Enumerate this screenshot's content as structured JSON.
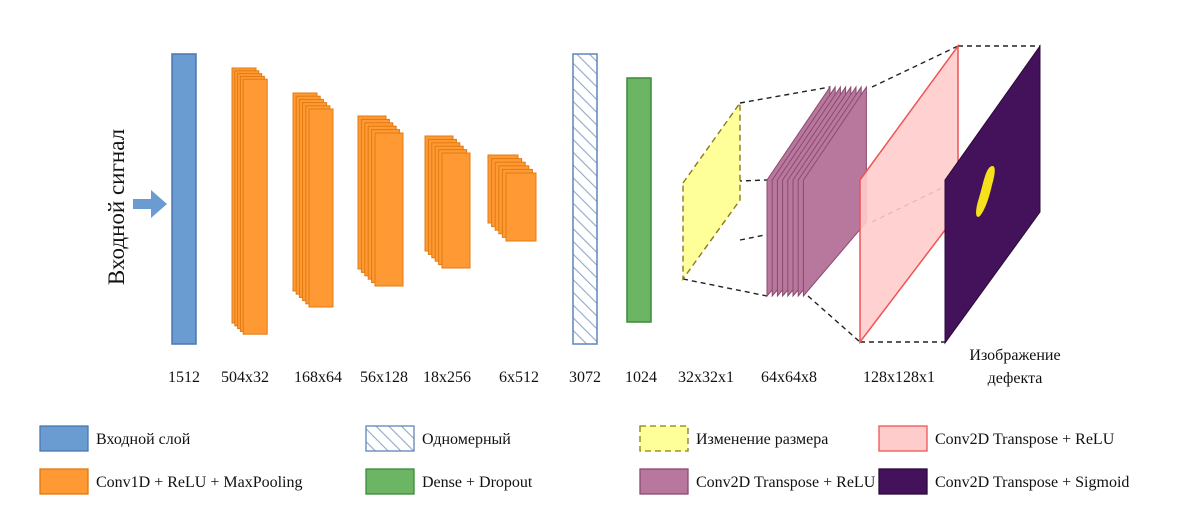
{
  "input_label": "Входной сигнал",
  "dimension_labels": [
    "1512",
    "504x32",
    "168x64",
    "56x128",
    "18x256",
    "6x512",
    "3072",
    "1024",
    "32x32x1",
    "64x64x8",
    "128x128x1"
  ],
  "output_label": [
    "Изображение",
    "дефекта"
  ],
  "legend": [
    {
      "label": "Входной слой",
      "style": "input"
    },
    {
      "label": "Одномерный",
      "style": "flatten"
    },
    {
      "label": "Изменение размера",
      "style": "reshape"
    },
    {
      "label": "Conv2D Transpose + ReLU",
      "style": "deconv_light"
    },
    {
      "label": "Conv1D + ReLU + MaxPooling",
      "style": "conv1d"
    },
    {
      "label": "Dense + Dropout",
      "style": "dense"
    },
    {
      "label": "Conv2D Transpose + ReLU",
      "style": "deconv_multi"
    },
    {
      "label": "Conv2D Transpose + Sigmoid",
      "style": "deconv_sigmoid"
    }
  ],
  "colors": {
    "input": "#6a9bd1",
    "input_stroke": "#4a78b0",
    "conv1d": "#ff9933",
    "conv1d_stroke": "#e07a10",
    "flatten_stroke": "#5f86b8",
    "dense": "#6bb565",
    "dense_stroke": "#3d8a3a",
    "reshape": "#ffff99",
    "reshape_stroke": "#8a7a1a",
    "deconv_multi": "#b8779c",
    "deconv_multi_stroke": "#8a4a70",
    "deconv_light": "#ffcccc",
    "deconv_light_stroke": "#ee5555",
    "sigmoid": "#44125a",
    "defect": "#f5e21a",
    "arrow": "#6a9bd1"
  }
}
